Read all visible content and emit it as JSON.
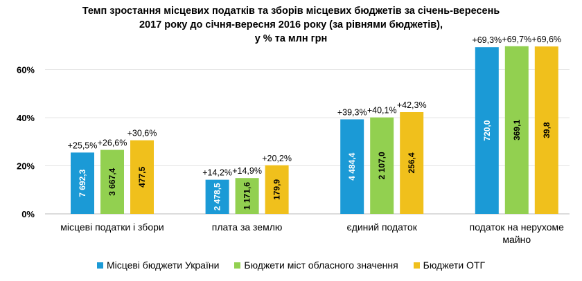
{
  "chart_data": {
    "type": "bar",
    "title_lines": [
      "Темп зростання місцевих податків та зборів місцевих бюджетів за січень-вересень",
      "2017 року до січня-вересня 2016 року (за рівнями бюджетів),",
      "у % та млн грн"
    ],
    "categories": [
      [
        "місцеві податки і збори"
      ],
      [
        "плата за землю"
      ],
      [
        "єдиний податок"
      ],
      [
        "податок на нерухоме",
        "майно"
      ]
    ],
    "series": [
      {
        "name": "Місцеві бюджети України",
        "color": "#1b9ad6",
        "inner_color": "#ffffff",
        "values": [
          25.5,
          14.2,
          39.3,
          69.3
        ],
        "labels": [
          "+25,5%",
          "+14,2%",
          "+39,3%",
          "+69,3%"
        ],
        "amounts": [
          "7 692,3",
          "2 478,5",
          "4 484,4",
          "720,0"
        ]
      },
      {
        "name": "Бюджети міст обласного значення",
        "color": "#92d050",
        "inner_color": "#000000",
        "values": [
          26.6,
          14.9,
          40.1,
          69.7
        ],
        "labels": [
          "+26,6%",
          "+14,9%",
          "+40,1%",
          "+69,7%"
        ],
        "amounts": [
          "3 667,4",
          "1 171,6",
          "2 107,0",
          "369,1"
        ]
      },
      {
        "name": "Бюджети ОТГ",
        "color": "#f0c01c",
        "inner_color": "#000000",
        "values": [
          30.6,
          20.2,
          42.3,
          69.6
        ],
        "labels": [
          "+30,6%",
          "+20,2%",
          "+42,3%",
          "+69,6%"
        ],
        "amounts": [
          "477,5",
          "179,9",
          "256,4",
          "39,8"
        ]
      }
    ],
    "yticks": [
      "0%",
      "20%",
      "40%",
      "60%"
    ],
    "ytick_values": [
      0,
      20,
      40,
      60
    ],
    "ylim": [
      0,
      70
    ],
    "grid": true,
    "legend_position": "bottom"
  }
}
